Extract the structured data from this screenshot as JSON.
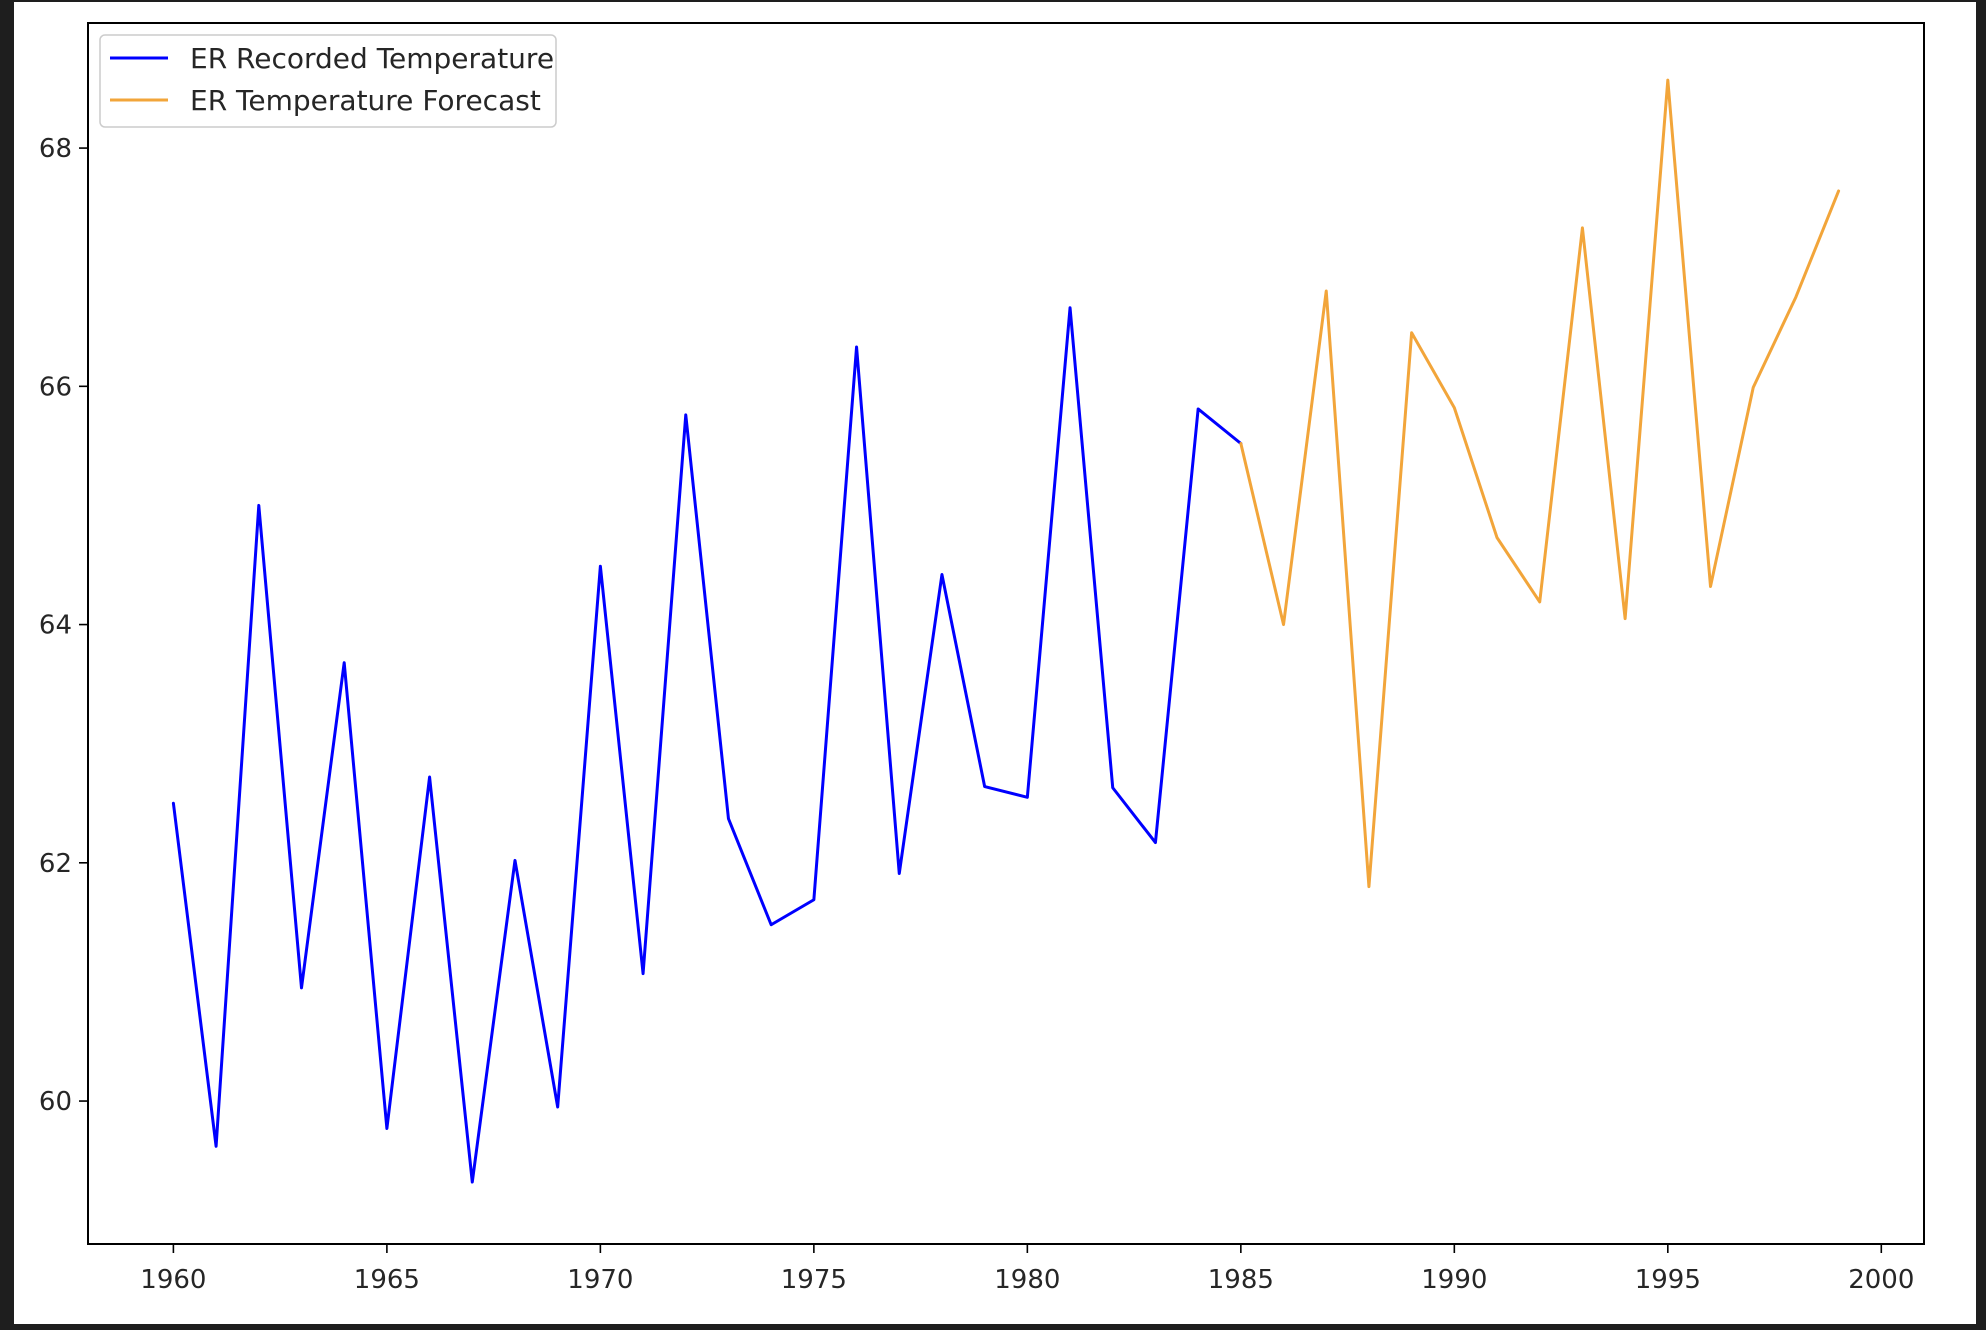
{
  "chart_data": {
    "type": "line",
    "title": "",
    "xlabel": "",
    "ylabel": "",
    "xlim": [
      1958,
      2001
    ],
    "ylim": [
      58.8,
      69.05
    ],
    "x_ticks": [
      "1960",
      "1965",
      "1970",
      "1975",
      "1980",
      "1985",
      "1990",
      "1995",
      "2000"
    ],
    "y_ticks": [
      "60",
      "62",
      "64",
      "66",
      "68"
    ],
    "grid": false,
    "legend_position": "top-left",
    "series": [
      {
        "name": "ER Recorded Temperature",
        "color": "#0000ff",
        "x": [
          1960,
          1961,
          1962,
          1963,
          1964,
          1965,
          1966,
          1967,
          1968,
          1969,
          1970,
          1971,
          1972,
          1973,
          1974,
          1975,
          1976,
          1977,
          1978,
          1979,
          1980,
          1981,
          1982,
          1983,
          1984,
          1985
        ],
        "y": [
          62.5,
          59.62,
          65.0,
          60.95,
          63.68,
          59.77,
          62.72,
          59.32,
          62.02,
          59.95,
          64.49,
          61.07,
          65.76,
          62.37,
          61.48,
          61.69,
          66.33,
          61.91,
          64.42,
          62.64,
          62.55,
          66.66,
          62.63,
          62.17,
          65.81,
          65.52
        ]
      },
      {
        "name": "ER Temperature Forecast",
        "color": "#f2a53a",
        "x": [
          1985,
          1986,
          1987,
          1988,
          1989,
          1990,
          1991,
          1992,
          1993,
          1994,
          1995,
          1996,
          1997,
          1998,
          1999
        ],
        "y": [
          65.52,
          64.0,
          66.8,
          61.8,
          66.45,
          65.82,
          64.73,
          64.19,
          67.33,
          64.05,
          68.57,
          64.32,
          65.99,
          66.75,
          67.64
        ]
      }
    ]
  }
}
